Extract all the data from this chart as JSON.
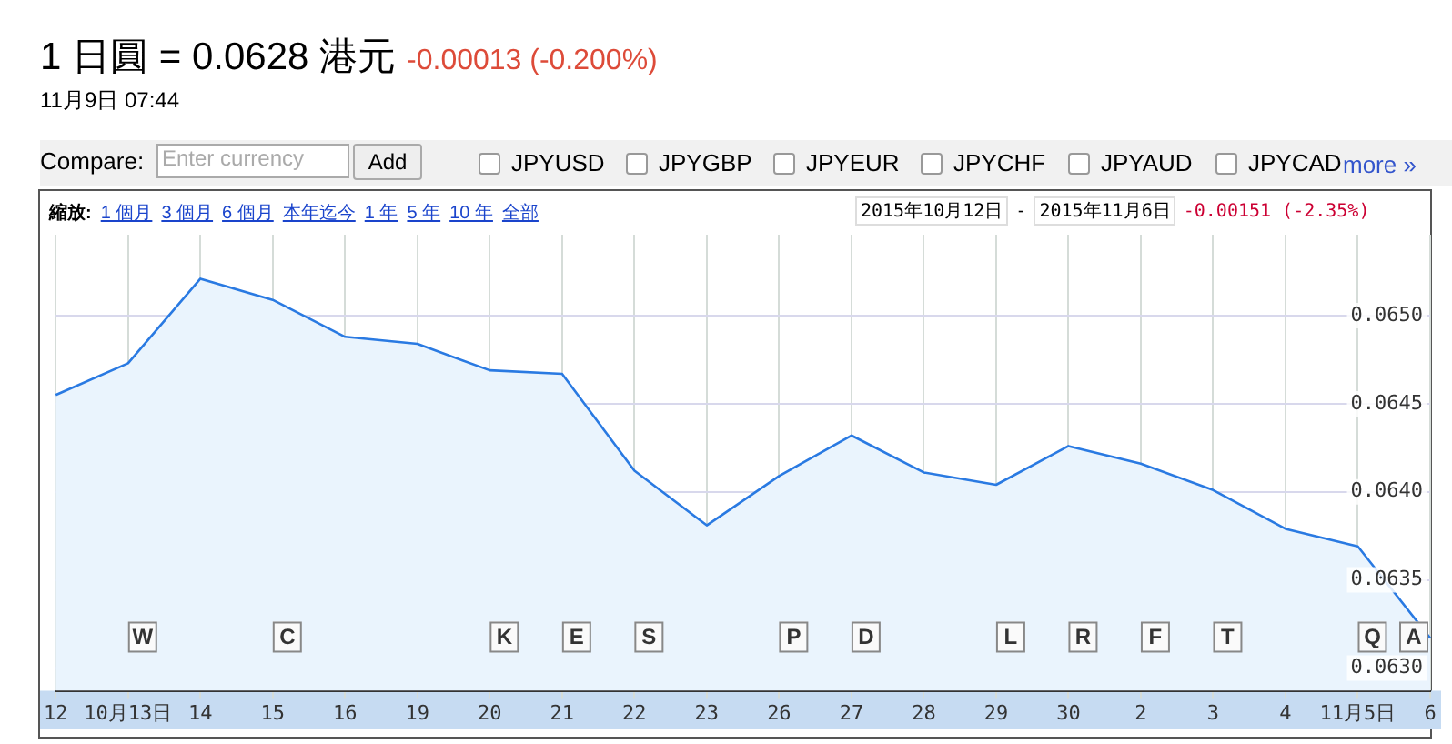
{
  "chart_data": {
    "type": "area",
    "title": "1 日圓 = 0.0628 港元",
    "subtitle": "-0.00013 (-0.200%)",
    "categories": [
      "12",
      "10月13日",
      "14",
      "15",
      "16",
      "19",
      "20",
      "21",
      "22",
      "23",
      "26",
      "27",
      "28",
      "29",
      "30",
      "2",
      "3",
      "4",
      "11月5日",
      "6"
    ],
    "series": [
      {
        "color": "#2a7ae2",
        "values": [
          0.06455,
          0.06473,
          0.06521,
          0.06509,
          0.06488,
          0.06484,
          0.06469,
          0.06467,
          0.06412,
          0.06381,
          0.06409,
          0.06432,
          0.06411,
          0.06404,
          0.06426,
          0.06416,
          0.06401,
          0.06379,
          0.06369,
          0.06317
        ]
      }
    ],
    "ylim": [
      0.06287,
      0.06546
    ],
    "yticks": [
      {
        "value": 0.063,
        "label": "0.0630"
      },
      {
        "value": 0.0635,
        "label": "0.0635"
      },
      {
        "value": 0.064,
        "label": "0.0640"
      },
      {
        "value": 0.0645,
        "label": "0.0645"
      },
      {
        "value": 0.065,
        "label": "0.0650"
      }
    ],
    "grid": true,
    "annotations": [
      "11月9日 07:44",
      "Compare:",
      "Enter currency",
      "Add",
      "JPYUSD",
      "JPYGBP",
      "JPYEUR",
      "JPYCHF",
      "JPYAUD",
      "JPYCAD",
      "more »",
      "縮放:",
      "1 個月",
      "3 個月",
      "6 個月",
      "本年迄今",
      "1 年",
      "5 年",
      "10 年",
      "全部",
      "2015年10月12日",
      "-",
      "2015年11月6日",
      "-0.00151 (-2.35%)",
      "W",
      "C",
      "K",
      "E",
      "S",
      "P",
      "D",
      "L",
      "R",
      "F",
      "T",
      "Q",
      "A"
    ]
  }
}
